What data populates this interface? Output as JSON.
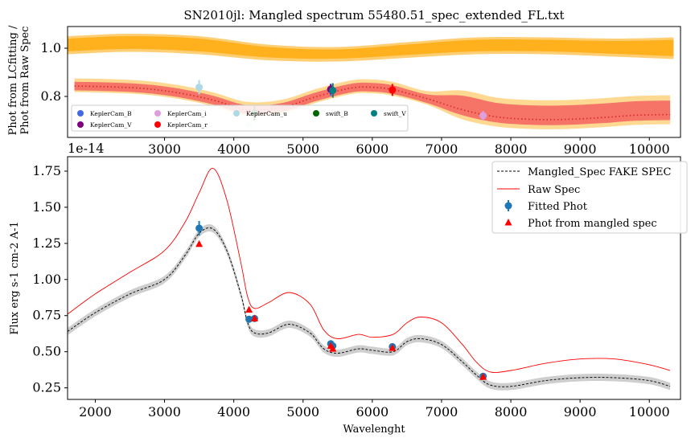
{
  "chart_data": [
    {
      "type": "line",
      "title": "SN2010jl: Mangled spectrum 55480.51_spec_extended_FL.txt",
      "xlabel": "",
      "ylabel_lines": [
        "Phot from LCfitting /",
        "Phot from Raw Spec"
      ],
      "offset_text": "1e-14",
      "xlim": [
        1600,
        10450
      ],
      "ylim": [
        0.63,
        1.09
      ],
      "xticks": [
        3000,
        4000,
        5000,
        6000,
        7000,
        8000,
        9000,
        10000
      ],
      "yticks": [
        0.8,
        1.0
      ],
      "ytick_labels": [
        "0.8",
        "1.0"
      ],
      "colors": {
        "orange": "#ffa500",
        "orange_light": "#ffd27f",
        "red_band": "#f46060",
        "red_dot": "#d62728"
      },
      "band_x": [
        1600,
        2500,
        3500,
        4500,
        5500,
        6500,
        7500,
        8500,
        9500,
        10350
      ],
      "orange_band_upper": [
        1.05,
        1.06,
        1.05,
        1.015,
        1.005,
        1.025,
        1.045,
        1.045,
        1.04,
        1.045
      ],
      "orange_band_lower": [
        0.975,
        0.985,
        0.975,
        0.95,
        0.945,
        0.96,
        0.975,
        0.975,
        0.965,
        0.955
      ],
      "ratio_curve_x": [
        1700,
        2200,
        2700,
        3200,
        3700,
        4200,
        4700,
        5200,
        5700,
        6000,
        6300,
        6800,
        7300,
        7800,
        8300,
        8800,
        9300,
        9800,
        10300
      ],
      "ratio_curve_y": [
        0.843,
        0.84,
        0.833,
        0.815,
        0.785,
        0.745,
        0.755,
        0.8,
        0.835,
        0.838,
        0.828,
        0.79,
        0.745,
        0.715,
        0.705,
        0.705,
        0.712,
        0.722,
        0.725
      ],
      "points": [
        {
          "filter": "KeplerCam_B",
          "x": 5400,
          "y": 0.828,
          "err": 0.025,
          "color": "#4169e1"
        },
        {
          "filter": "KeplerCam_V",
          "x": 5400,
          "y": 0.83,
          "err": 0.02,
          "color": "#800080"
        },
        {
          "filter": "KeplerCam_i",
          "x": 7600,
          "y": 0.72,
          "err": 0.02,
          "color": "#dda0dd"
        },
        {
          "filter": "KeplerCam_r",
          "x": 6290,
          "y": 0.827,
          "err": 0.025,
          "color": "#ff0000"
        },
        {
          "filter": "KeplerCam_u",
          "x": 3500,
          "y": 0.838,
          "err": 0.03,
          "color": "#add8e6"
        },
        {
          "filter": "swift_B",
          "x": 4300,
          "y": 0.73,
          "err": 0.03,
          "color": "#006400"
        },
        {
          "filter": "swift_V",
          "x": 5430,
          "y": 0.825,
          "err": 0.03,
          "color": "#008080"
        },
        {
          "filter": "",
          "x": 4220,
          "y": 0.683,
          "err": 0.01,
          "color": "#e0e8f5"
        }
      ],
      "legend": {
        "position": "lower-left",
        "entries": [
          {
            "label": "KeplerCam_B",
            "color": "#4169e1"
          },
          {
            "label": "KeplerCam_i",
            "color": "#dda0dd"
          },
          {
            "label": "KeplerCam_u",
            "color": "#add8e6"
          },
          {
            "label": "swift_B",
            "color": "#006400"
          },
          {
            "label": "swift_V",
            "color": "#008080"
          },
          {
            "label": "KeplerCam_V",
            "color": "#800080"
          },
          {
            "label": "KeplerCam_r",
            "color": "#ff0000"
          }
        ]
      }
    },
    {
      "type": "line",
      "title": "",
      "xlabel": "Wavelenght",
      "ylabel": "Flux erg s-1 cm-2 A-1",
      "xlim": [
        1600,
        10450
      ],
      "ylim": [
        0.17,
        1.85
      ],
      "xticks": [
        2000,
        3000,
        4000,
        5000,
        6000,
        7000,
        8000,
        9000,
        10000
      ],
      "yticks": [
        0.25,
        0.5,
        0.75,
        1.0,
        1.25,
        1.5,
        1.75
      ],
      "ytick_labels": [
        "0.25",
        "0.50",
        "0.75",
        "1.00",
        "1.25",
        "1.50",
        "1.75"
      ],
      "series": [
        {
          "name": "Raw Spec",
          "color": "#ff0000",
          "x": [
            1600,
            2000,
            2500,
            3000,
            3300,
            3500,
            3700,
            3900,
            4100,
            4200,
            4300,
            4500,
            4800,
            5100,
            5300,
            5500,
            5800,
            6000,
            6300,
            6500,
            6700,
            7000,
            7300,
            7500,
            7700,
            8000,
            8500,
            9000,
            9500,
            10000,
            10300
          ],
          "y": [
            0.76,
            0.9,
            1.05,
            1.2,
            1.4,
            1.6,
            1.77,
            1.55,
            1.12,
            0.88,
            0.8,
            0.84,
            0.91,
            0.83,
            0.65,
            0.59,
            0.62,
            0.6,
            0.62,
            0.7,
            0.74,
            0.7,
            0.55,
            0.43,
            0.36,
            0.37,
            0.42,
            0.45,
            0.45,
            0.41,
            0.37
          ]
        },
        {
          "name": "Mangled_Spec FAKE SPEC",
          "color": "#000000",
          "x": [
            1600,
            2000,
            2500,
            3000,
            3300,
            3500,
            3700,
            3900,
            4100,
            4200,
            4300,
            4500,
            4800,
            5100,
            5300,
            5500,
            5800,
            6000,
            6300,
            6500,
            6700,
            7000,
            7300,
            7500,
            7700,
            8000,
            8500,
            9000,
            9500,
            10000,
            10300
          ],
          "y": [
            0.64,
            0.77,
            0.9,
            1.0,
            1.17,
            1.32,
            1.35,
            1.2,
            0.9,
            0.7,
            0.63,
            0.63,
            0.69,
            0.63,
            0.52,
            0.49,
            0.52,
            0.51,
            0.5,
            0.57,
            0.59,
            0.55,
            0.43,
            0.34,
            0.27,
            0.26,
            0.3,
            0.32,
            0.32,
            0.3,
            0.26
          ]
        }
      ],
      "fitted_phot": {
        "name": "Fitted Phot",
        "color": "#1f77b4",
        "x": [
          3500,
          4220,
          4300,
          5400,
          5430,
          6290,
          7600
        ],
        "y": [
          1.355,
          0.725,
          0.73,
          0.555,
          0.54,
          0.535,
          0.33
        ],
        "err": [
          0.05,
          0.02,
          0.02,
          0.02,
          0.02,
          0.02,
          0.015
        ]
      },
      "phot_from_mangled_spec": {
        "name": "Phot from mangled spec",
        "color": "#ff0000",
        "x": [
          3500,
          4220,
          4300,
          5400,
          5430,
          6290,
          7600
        ],
        "y": [
          1.245,
          0.79,
          0.73,
          0.54,
          0.52,
          0.525,
          0.325
        ]
      },
      "legend": {
        "position": "top-right",
        "entries": [
          "Mangled_Spec FAKE SPEC",
          "Raw Spec",
          "Fitted Phot",
          "Phot from mangled spec"
        ]
      }
    }
  ]
}
